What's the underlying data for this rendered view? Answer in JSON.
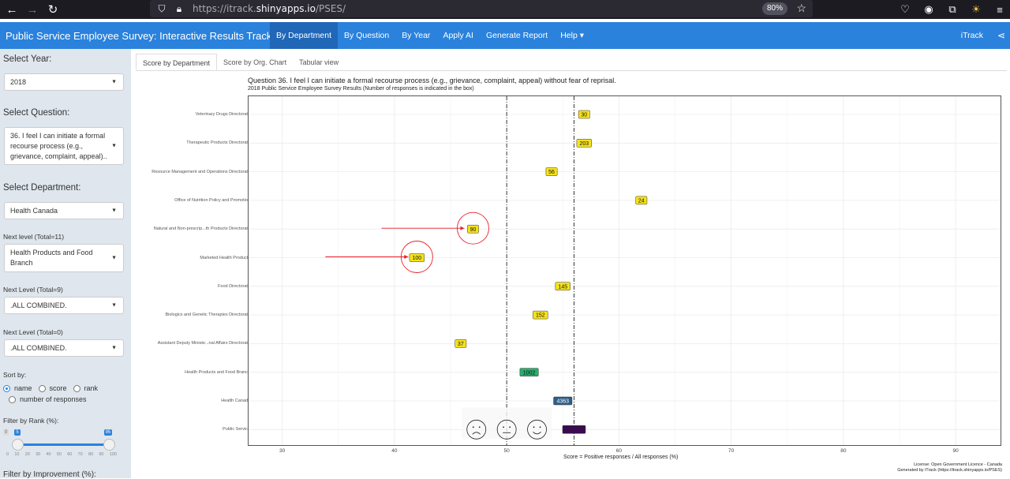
{
  "browser": {
    "url_prefix": "https://itrack.",
    "url_host": "shinyapps.io",
    "url_path": "/PSES/",
    "zoom": "80%"
  },
  "app": {
    "title": "Public Service Employee Survey: Interactive Results Tracker",
    "nav": [
      "By Department",
      "By Question",
      "By Year",
      "Apply AI",
      "Generate Report",
      "Help ▾"
    ],
    "nav_active": "By Department",
    "brand_right": "iTrack"
  },
  "sidebar": {
    "year_label": "Select Year:",
    "year_value": "2018",
    "question_label": "Select Question:",
    "question_value": "36. I feel I can initiate a formal recourse process (e.g., grievance, complaint, appeal)..",
    "department_label": "Select Department:",
    "department_value": "Health Canada",
    "next1_label": "Next level (Total=11)",
    "next1_value": "Health Products and Food Branch",
    "next2_label": "Next Level (Total=9)",
    "next2_value": ".ALL COMBINED.",
    "next3_label": "Next Level (Total=0)",
    "next3_value": ".ALL COMBINED.",
    "sort_label": "Sort by:",
    "sort_options": [
      "name",
      "score",
      "rank",
      "number of responses"
    ],
    "sort_selected": "name",
    "rank_label": "Filter by Rank (%):",
    "rank_min": "0",
    "rank_low": "5",
    "rank_high": "95",
    "rank_low_value": 5,
    "rank_high_value": 95,
    "rank_ticks": [
      "0",
      "10",
      "20",
      "30",
      "40",
      "50",
      "60",
      "70",
      "80",
      "90",
      "100"
    ],
    "improve_label": "Filter by Improvement (%):"
  },
  "tabs": [
    "Score by Department",
    "Score by Org. Chart",
    "Tabular view"
  ],
  "tab_active": "Score by Department",
  "chart_data": {
    "type": "scatter",
    "title": "Question 36. I feel I can initiate a formal recourse process (e.g., grievance, complaint, appeal) without fear of reprisal.",
    "subtitle": "2018 Public Service Employee Survey Results (Number of responses is indicated in the box)",
    "xlabel": "Score = Positive responses / All responses (%)",
    "xlim": [
      27,
      94
    ],
    "xticks": [
      30,
      40,
      50,
      60,
      70,
      80,
      90
    ],
    "reference_lines": [
      50,
      56
    ],
    "categories": [
      "Veterinary Drugs Directorate",
      "Therapeutic Products Directorate",
      "Resource Management and Operations Directorate",
      "Office of Nutrition Policy and Promotion",
      "Natural and Non-prescrip...th Products Directorate",
      "Marketed Health Products",
      "Food Directorate",
      "Biologics and Genetic Therapies Directorate",
      "Assistant Deputy Ministe...nal Affairs Directorate",
      "Health Products and Food Branch",
      "Health Canada",
      "Public Service"
    ],
    "points": [
      {
        "x": 56.9,
        "label": "30",
        "color": "#f5e21b"
      },
      {
        "x": 56.9,
        "label": "203",
        "color": "#f5e21b"
      },
      {
        "x": 54,
        "label": "56",
        "color": "#f5e21b"
      },
      {
        "x": 62,
        "label": "24",
        "color": "#f5e21b"
      },
      {
        "x": 47,
        "label": "90",
        "color": "#f5e21b"
      },
      {
        "x": 42,
        "label": "100",
        "color": "#f5e21b"
      },
      {
        "x": 55,
        "label": "145",
        "color": "#f5e21b"
      },
      {
        "x": 53,
        "label": "152",
        "color": "#f5e21b"
      },
      {
        "x": 45.9,
        "label": "37",
        "color": "#f5e21b"
      },
      {
        "x": 52,
        "label": "1002",
        "color": "#27ae6b"
      },
      {
        "x": 55,
        "label": "4363",
        "color": "#2f5e87"
      },
      {
        "x": 56,
        "label": "",
        "color": "#3b0b4f"
      }
    ],
    "highlighted": [
      "90",
      "100"
    ],
    "annotation_color": "#e8202a",
    "license": [
      "License: Open Government Licence - Canada",
      "Generated by iTrack (https://itrack.shinyapps.io/PSES)"
    ]
  }
}
